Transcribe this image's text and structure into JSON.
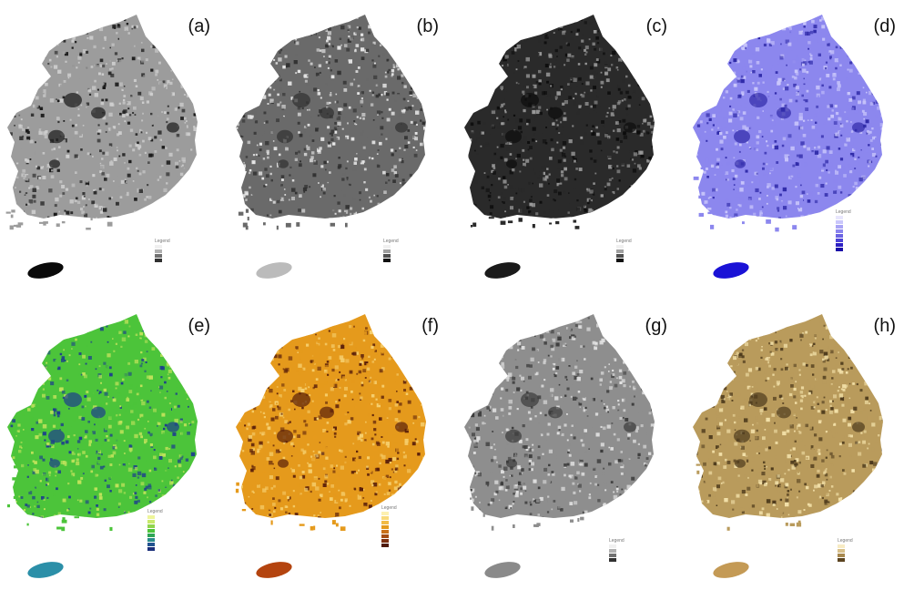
{
  "panels": [
    {
      "label": "(a)",
      "colors": {
        "base": "#9c9c9c",
        "dark": "#1a1a1a",
        "light": "#cfcfcf",
        "jeju": "#0a0a0a"
      },
      "legend": {
        "title": "Legend",
        "subtitle": "",
        "ramp": [
          "#f0f0f0",
          "#b0b0b0",
          "#707070",
          "#303030"
        ]
      }
    },
    {
      "label": "(b)",
      "colors": {
        "base": "#6a6a6a",
        "dark": "#303030",
        "light": "#e8e8e8",
        "jeju": "#bbbbbb"
      },
      "legend": {
        "title": "Legend",
        "subtitle": "",
        "ramp": [
          "#f0f0f0",
          "#a0a0a0",
          "#505050",
          "#101010"
        ]
      }
    },
    {
      "label": "(c)",
      "colors": {
        "base": "#2a2a2a",
        "dark": "#0d0d0d",
        "light": "#9a9a9a",
        "jeju": "#1a1a1a"
      },
      "legend": {
        "title": "Legend",
        "subtitle": "",
        "ramp": [
          "#f0f0f0",
          "#a0a0a0",
          "#505050",
          "#101010"
        ]
      }
    },
    {
      "label": "(d)",
      "colors": {
        "base": "#8c87ee",
        "dark": "#2f2aa8",
        "light": "#c9c6fb",
        "jeju": "#1a12d6"
      },
      "legend": {
        "title": "Legend",
        "subtitle": "",
        "ramp": [
          "#e8e6fd",
          "#c9c6fb",
          "#a9a4f6",
          "#8a84ee",
          "#6b63e3",
          "#4c42d6",
          "#2d20c4",
          "#1a0fa8"
        ]
      }
    },
    {
      "label": "(e)",
      "colors": {
        "base": "#4cc43a",
        "dark": "#1d3f8c",
        "light": "#bfe25b",
        "jeju": "#2b8fa8"
      },
      "legend": {
        "title": "Legend",
        "subtitle": "",
        "ramp": [
          "#eef59a",
          "#c8e96b",
          "#8fd44c",
          "#4cc43a",
          "#2fa655",
          "#2a8a8a",
          "#22538f",
          "#1b2f7a"
        ]
      }
    },
    {
      "label": "(f)",
      "colors": {
        "base": "#e59a1c",
        "dark": "#5a1f0a",
        "light": "#f6cf6e",
        "jeju": "#b4440f"
      },
      "legend": {
        "title": "Legend",
        "subtitle": "",
        "ramp": [
          "#fdf0b0",
          "#f9da7a",
          "#f2bb45",
          "#e59a1c",
          "#c9711a",
          "#a44d14",
          "#7d2f0f",
          "#4f1a0a"
        ]
      }
    },
    {
      "label": "(g)",
      "colors": {
        "base": "#8e8e8e",
        "dark": "#3a3a3a",
        "light": "#e2e2e2",
        "jeju": "#8a8a8a"
      },
      "legend": {
        "title": "Legend",
        "subtitle": "",
        "ramp": [
          "#f0f0f0",
          "#b0b0b0",
          "#707070",
          "#303030"
        ]
      }
    },
    {
      "label": "(h)",
      "colors": {
        "base": "#b99b5c",
        "dark": "#4d3a1c",
        "light": "#f2e0a8",
        "jeju": "#c49a55"
      },
      "legend": {
        "title": "Legend",
        "subtitle": "",
        "ramp": [
          "#f7ebc4",
          "#d8c08a",
          "#a8894f",
          "#5b4420"
        ]
      }
    }
  ]
}
